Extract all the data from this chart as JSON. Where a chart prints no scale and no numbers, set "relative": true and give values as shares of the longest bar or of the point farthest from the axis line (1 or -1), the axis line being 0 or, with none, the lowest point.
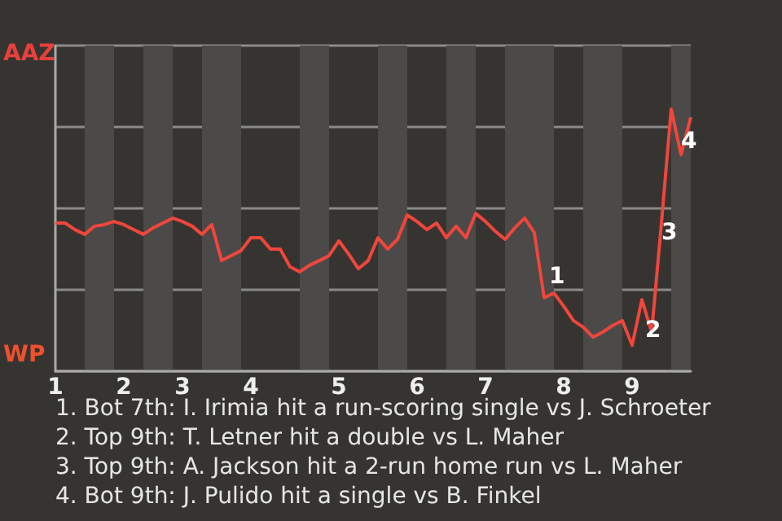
{
  "chart_data": {
    "type": "line",
    "categories": [
      "1",
      null,
      null,
      null,
      null,
      null,
      null,
      "2",
      null,
      null,
      null,
      null,
      null,
      "3",
      null,
      null,
      null,
      null,
      null,
      null,
      "4",
      null,
      null,
      null,
      null,
      null,
      null,
      null,
      null,
      "5",
      null,
      null,
      null,
      null,
      null,
      null,
      null,
      "6",
      null,
      null,
      null,
      null,
      null,
      null,
      "7",
      null,
      null,
      null,
      null,
      null,
      null,
      null,
      "8",
      null,
      null,
      null,
      null,
      null,
      null,
      "9",
      null,
      null,
      null,
      null,
      null,
      null
    ],
    "series": [
      {
        "color": "#f0463c",
        "values": [
          0.565,
          0.565,
          0.54,
          0.522,
          0.553,
          0.559,
          0.571,
          0.559,
          0.54,
          0.522,
          0.547,
          0.565,
          0.584,
          0.571,
          0.553,
          0.522,
          0.559,
          0.422,
          0.441,
          0.46,
          0.509,
          0.509,
          0.466,
          0.466,
          0.398,
          0.379,
          0.404,
          0.422,
          0.441,
          0.497,
          0.447,
          0.391,
          0.422,
          0.509,
          0.466,
          0.503,
          0.596,
          0.571,
          0.54,
          0.565,
          0.509,
          0.553,
          0.509,
          0.602,
          0.571,
          0.534,
          0.503,
          0.547,
          0.584,
          0.528,
          0.28,
          0.298,
          0.248,
          0.193,
          0.168,
          0.13,
          0.149,
          0.174,
          0.193,
          0.099,
          0.273,
          0.149,
          0.565,
          1,
          0.826,
          0.969
        ]
      }
    ],
    "relative": true,
    "grid": "y",
    "marker": "none",
    "line_style": "solid",
    "annotations": [
      "AAZ",
      "WP",
      "1",
      "2",
      "3",
      "4",
      "1. Bot 7th: I. Irimia hit a run-scoring single vs J. Schroeter",
      "2. Top 9th: T. Letner hit a double vs L. Maher",
      "3. Top 9th: A. Jackson hit a 2-run home run vs L. Maher",
      "4. Bot 9th: J. Pulido hit a single vs B. Finkel"
    ]
  }
}
